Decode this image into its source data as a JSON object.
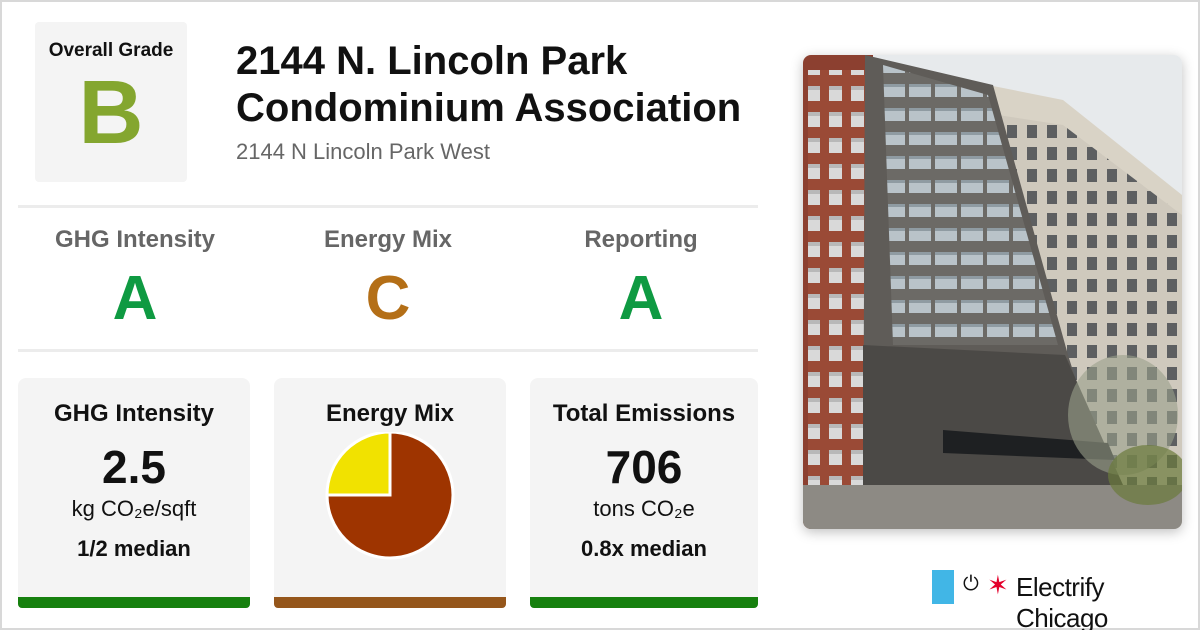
{
  "overall": {
    "label": "Overall Grade",
    "grade": "B",
    "color": "#84a62f"
  },
  "building": {
    "name": "2144 N. Lincoln Park Condominium Association",
    "address": "2144 N Lincoln Park West"
  },
  "grades": [
    {
      "label": "GHG Intensity",
      "grade": "A",
      "color": "#0f9a42"
    },
    {
      "label": "Energy Mix",
      "grade": "C",
      "color": "#b46f17"
    },
    {
      "label": "Reporting",
      "grade": "A",
      "color": "#0f9a42"
    }
  ],
  "cards": {
    "ghg": {
      "title": "GHG Intensity",
      "value": "2.5",
      "unit": "kg CO₂e/sqft",
      "median": "1/2 median",
      "bar_color": "#16800e"
    },
    "mix": {
      "title": "Energy Mix",
      "bar_color": "#95561b"
    },
    "emissions": {
      "title": "Total Emissions",
      "value": "706",
      "unit": "tons CO₂e",
      "median": "0.8x median",
      "bar_color": "#16800e"
    }
  },
  "chart_data": {
    "type": "pie",
    "title": "Energy Mix",
    "slices": [
      {
        "value": 75,
        "color": "#9e3400"
      },
      {
        "value": 25,
        "color": "#f1e200"
      }
    ]
  },
  "brand": {
    "name": "Electrify Chicago",
    "flag_color": "#41b6e6",
    "star_color": "#e4002b"
  }
}
